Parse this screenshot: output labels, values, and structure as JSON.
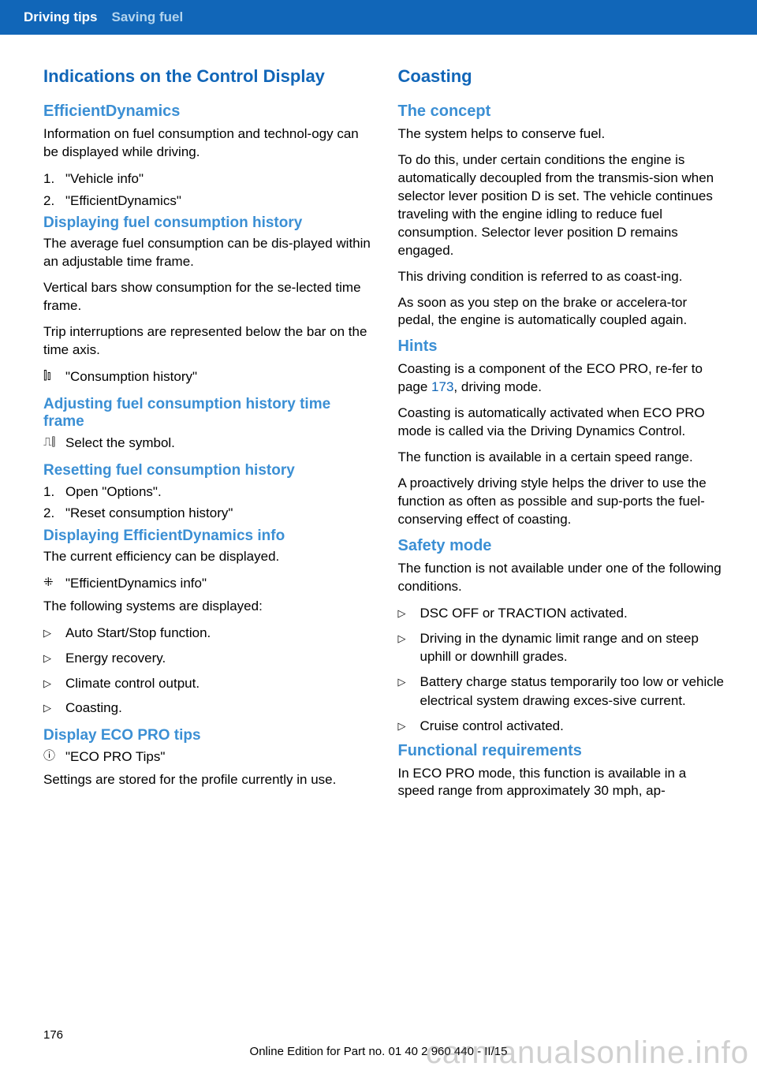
{
  "header": {
    "section": "Driving tips",
    "subsection": "Saving fuel"
  },
  "left": {
    "title": "Indications on the Control Display",
    "s1": {
      "heading": "EfficientDynamics",
      "intro": "Information on fuel consumption and technol‐ogy can be displayed while driving.",
      "steps": [
        "\"Vehicle info\"",
        "\"EfficientDynamics\""
      ]
    },
    "s2": {
      "heading": "Displaying fuel consumption history",
      "p1": "The average fuel consumption can be dis‐played within an adjustable time frame.",
      "p2": "Vertical bars show consumption for the se‐lected time frame.",
      "p3": "Trip interruptions are represented below the bar on the time axis.",
      "icon_label": "\"Consumption history\""
    },
    "s3": {
      "heading": "Adjusting fuel consumption history time frame",
      "icon_label": "Select the symbol."
    },
    "s4": {
      "heading": "Resetting fuel consumption history",
      "steps": [
        "Open \"Options\".",
        "\"Reset consumption history\""
      ]
    },
    "s5": {
      "heading": "Displaying EfficientDynamics info",
      "p1": "The current efficiency can be displayed.",
      "icon_label": "\"EfficientDynamics info\"",
      "p2": "The following systems are displayed:",
      "items": [
        "Auto Start/Stop function.",
        "Energy recovery.",
        "Climate control output.",
        "Coasting."
      ]
    },
    "s6": {
      "heading": "Display ECO PRO tips",
      "icon_label": "\"ECO PRO Tips\"",
      "p1": "Settings are stored for the profile currently in use."
    }
  },
  "right": {
    "title": "Coasting",
    "s1": {
      "heading": "The concept",
      "p1": "The system helps to conserve fuel.",
      "p2": "To do this, under certain conditions the engine is automatically decoupled from the transmis‐sion when selector lever position D is set. The vehicle continues traveling with the engine idling to reduce fuel consumption. Selector lever position D remains engaged.",
      "p3": "This driving condition is referred to as coast‐ing.",
      "p4": "As soon as you step on the brake or accelera‐tor pedal, the engine is automatically coupled again."
    },
    "s2": {
      "heading": "Hints",
      "p1a": "Coasting is a component of the ECO PRO, re‐fer to page ",
      "p1link": "173",
      "p1b": ", driving mode.",
      "p2": "Coasting is automatically activated when ECO PRO mode is called via the Driving Dynamics Control.",
      "p3": "The function is available in a certain speed range.",
      "p4": "A proactively driving style helps the driver to use the function as often as possible and sup‐ports the fuel-conserving effect of coasting."
    },
    "s3": {
      "heading": "Safety mode",
      "p1": "The function is not available under one of the following conditions.",
      "items": [
        "DSC OFF or TRACTION activated.",
        "Driving in the dynamic limit range and on steep uphill or downhill grades.",
        "Battery charge status temporarily too low or vehicle electrical system drawing exces‐sive current.",
        "Cruise control activated."
      ]
    },
    "s4": {
      "heading": "Functional requirements",
      "p1": "In ECO PRO mode, this function is available in a speed range from approximately 30 mph, ap‐"
    }
  },
  "footer": {
    "page": "176",
    "part": "Online Edition for Part no. 01 40 2 960 440 - II/15"
  },
  "watermark": "carmanualsonline.info",
  "icons": {
    "bars": "⫾⫿",
    "chart": "⎍",
    "dyn": "⁜",
    "info": "ⓘ",
    "bullet": "▷"
  }
}
